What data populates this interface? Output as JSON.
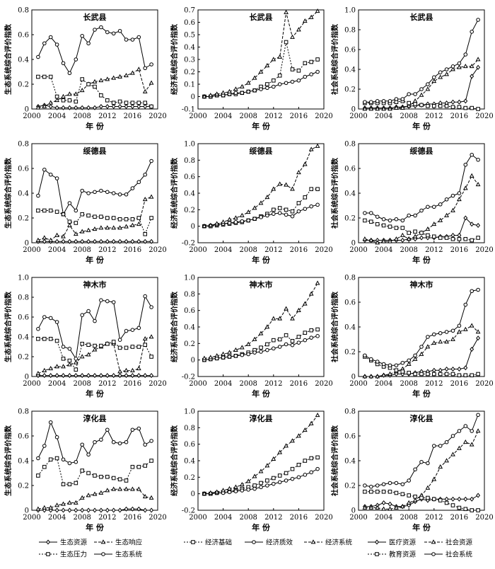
{
  "x_label": "年 份",
  "x_ticks": [
    2000,
    2004,
    2008,
    2012,
    2016,
    2020
  ],
  "years": [
    2001,
    2002,
    2003,
    2004,
    2005,
    2006,
    2007,
    2008,
    2009,
    2010,
    2011,
    2012,
    2013,
    2014,
    2015,
    2016,
    2017,
    2018,
    2019
  ],
  "legends": {
    "eco": [
      {
        "name": "生态资源",
        "key": "resource",
        "marker": "diamond",
        "dash": "solid"
      },
      {
        "name": "生态响应",
        "key": "response",
        "marker": "triangle",
        "dash": "dash"
      },
      {
        "name": "生态压力",
        "key": "pressure",
        "marker": "square",
        "dash": "dot"
      },
      {
        "name": "生态系统",
        "key": "system",
        "marker": "circle",
        "dash": "solid"
      }
    ],
    "econ": [
      {
        "name": "经济基础",
        "key": "base",
        "marker": "square",
        "dash": "dot"
      },
      {
        "name": "经济质效",
        "key": "quality",
        "marker": "circle",
        "dash": "solid"
      },
      {
        "name": "经济系统",
        "key": "system",
        "marker": "triangle",
        "dash": "dash"
      }
    ],
    "soc": [
      {
        "name": "医疗资源",
        "key": "medical",
        "marker": "diamond",
        "dash": "solid"
      },
      {
        "name": "社会资源",
        "key": "resource",
        "marker": "triangle",
        "dash": "dash"
      },
      {
        "name": "教育资源",
        "key": "education",
        "marker": "square",
        "dash": "dot"
      },
      {
        "name": "社会系统",
        "key": "system",
        "marker": "circle",
        "dash": "solid"
      }
    ]
  },
  "chart_data": [
    {
      "type": "line",
      "group": "eco",
      "title": "长武县",
      "ylabel": "生态系统综合评价指数",
      "ylim": [
        0,
        0.8
      ],
      "yticks": [
        "0",
        "0.2",
        "0.4",
        "0.6",
        "0.8"
      ],
      "series": {
        "resource": [
          0.02,
          0.03,
          0.02,
          0.01,
          0.01,
          0.01,
          0.01,
          0.01,
          0.01,
          0.01,
          0.02,
          0.02,
          0.02,
          0.02,
          0.02,
          0.02,
          0.02,
          0.02,
          0.02
        ],
        "response": [
          0.01,
          0.02,
          0.05,
          0.07,
          0.1,
          0.12,
          0.12,
          0.15,
          0.2,
          0.22,
          0.23,
          0.24,
          0.25,
          0.26,
          0.27,
          0.29,
          0.32,
          0.14,
          0.21
        ],
        "pressure": [
          0.26,
          0.26,
          0.26,
          0.1,
          0.07,
          0.07,
          0.06,
          0.24,
          0.2,
          0.18,
          0.11,
          0.07,
          0.05,
          0.06,
          0.05,
          0.05,
          0.05,
          0.05,
          0.02
        ],
        "system": [
          0.42,
          0.53,
          0.58,
          0.52,
          0.37,
          0.29,
          0.4,
          0.59,
          0.53,
          0.64,
          0.66,
          0.62,
          0.61,
          0.63,
          0.56,
          0.56,
          0.58,
          0.33,
          0.36
        ]
      }
    },
    {
      "type": "line",
      "group": "econ",
      "title": "长武县",
      "ylabel": "经济系统综合评价指数",
      "ylim": [
        -0.1,
        0.7
      ],
      "yticks": [
        "-0.1",
        "0",
        "0.1",
        "0.2",
        "0.3",
        "0.4",
        "0.5",
        "0.6",
        "0.7"
      ],
      "series": {
        "base": [
          0.0,
          0.0,
          0.01,
          0.01,
          0.02,
          0.02,
          0.03,
          0.04,
          0.05,
          0.08,
          0.1,
          0.13,
          0.17,
          0.44,
          0.22,
          0.21,
          0.27,
          0.28,
          0.3
        ],
        "quality": [
          0.0,
          0.0,
          0.01,
          0.01,
          0.02,
          0.03,
          0.03,
          0.04,
          0.05,
          0.06,
          0.07,
          0.08,
          0.1,
          0.11,
          0.12,
          0.13,
          0.16,
          0.18,
          0.2
        ],
        "system": [
          0.0,
          0.01,
          0.02,
          0.03,
          0.04,
          0.06,
          0.08,
          0.11,
          0.15,
          0.2,
          0.25,
          0.3,
          0.32,
          0.68,
          0.48,
          0.54,
          0.61,
          0.64,
          0.69
        ]
      }
    },
    {
      "type": "line",
      "group": "soc",
      "title": "长武县",
      "ylabel": "社会系统综合评价指数",
      "ylim": [
        0,
        1.0
      ],
      "yticks": [
        "0",
        "0.2",
        "0.4",
        "0.6",
        "0.8",
        "1.0"
      ],
      "series": {
        "medical": [
          0.01,
          0.01,
          0.01,
          0.01,
          0.01,
          0.02,
          0.02,
          0.03,
          0.03,
          0.04,
          0.05,
          0.05,
          0.06,
          0.06,
          0.07,
          0.07,
          0.08,
          0.33,
          0.42
        ],
        "resource": [
          0.0,
          0.0,
          0.0,
          0.0,
          0.0,
          0.01,
          0.01,
          0.03,
          0.08,
          0.14,
          0.2,
          0.28,
          0.32,
          0.35,
          0.4,
          0.42,
          0.43,
          0.43,
          0.5
        ],
        "education": [
          0.06,
          0.06,
          0.06,
          0.06,
          0.06,
          0.07,
          0.08,
          0.06,
          0.05,
          0.04,
          0.03,
          0.03,
          0.03,
          0.03,
          0.02,
          0.02,
          0.01,
          0.01,
          0.0
        ],
        "system": [
          0.07,
          0.07,
          0.08,
          0.08,
          0.08,
          0.1,
          0.1,
          0.15,
          0.15,
          0.2,
          0.25,
          0.32,
          0.37,
          0.4,
          0.43,
          0.46,
          0.55,
          0.78,
          0.9
        ]
      }
    },
    {
      "type": "line",
      "group": "eco",
      "title": "绥德县",
      "ylabel": "生态系统综合评价指数",
      "ylim": [
        0,
        0.8
      ],
      "yticks": [
        "0",
        "0.2",
        "0.4",
        "0.6",
        "0.8"
      ],
      "series": {
        "resource": [
          0.01,
          0.01,
          0.01,
          0.01,
          0.01,
          0.01,
          0.01,
          0.01,
          0.01,
          0.01,
          0.01,
          0.01,
          0.01,
          0.01,
          0.01,
          0.01,
          0.01,
          0.01,
          0.01
        ],
        "response": [
          0.02,
          0.04,
          0.02,
          0.06,
          0.05,
          0.14,
          0.07,
          0.09,
          0.1,
          0.11,
          0.12,
          0.12,
          0.12,
          0.12,
          0.13,
          0.14,
          0.15,
          0.35,
          0.37
        ],
        "pressure": [
          0.26,
          0.26,
          0.26,
          0.25,
          0.23,
          0.17,
          0.16,
          0.23,
          0.22,
          0.21,
          0.21,
          0.2,
          0.2,
          0.19,
          0.19,
          0.19,
          0.2,
          0.07,
          0.2
        ],
        "system": [
          0.38,
          0.59,
          0.55,
          0.52,
          0.23,
          0.32,
          0.26,
          0.42,
          0.4,
          0.41,
          0.42,
          0.41,
          0.4,
          0.39,
          0.39,
          0.44,
          0.49,
          0.55,
          0.66
        ]
      }
    },
    {
      "type": "line",
      "group": "econ",
      "title": "绥德县",
      "ylabel": "经济系统综合评价指数",
      "ylim": [
        -0.2,
        1.0
      ],
      "yticks": [
        "-0.2",
        "0",
        "0.2",
        "0.4",
        "0.6",
        "0.8",
        "1.0"
      ],
      "series": {
        "base": [
          0.0,
          0.0,
          0.01,
          0.02,
          0.03,
          0.04,
          0.05,
          0.07,
          0.09,
          0.12,
          0.15,
          0.2,
          0.22,
          0.2,
          0.18,
          0.28,
          0.35,
          0.45,
          0.45
        ],
        "quality": [
          0.0,
          0.01,
          0.02,
          0.03,
          0.04,
          0.05,
          0.06,
          0.07,
          0.09,
          0.11,
          0.13,
          0.15,
          0.16,
          0.14,
          0.12,
          0.18,
          0.21,
          0.24,
          0.26
        ],
        "system": [
          0.0,
          0.01,
          0.03,
          0.05,
          0.08,
          0.1,
          0.13,
          0.17,
          0.22,
          0.28,
          0.35,
          0.45,
          0.51,
          0.5,
          0.45,
          0.65,
          0.75,
          0.93,
          0.97
        ]
      }
    },
    {
      "type": "line",
      "group": "soc",
      "title": "绥德县",
      "ylabel": "社会系统综合评价指数",
      "ylim": [
        0,
        0.8
      ],
      "yticks": [
        "0",
        "0.2",
        "0.4",
        "0.6",
        "0.8"
      ],
      "series": {
        "medical": [
          0.02,
          0.02,
          0.02,
          0.02,
          0.02,
          0.02,
          0.02,
          0.03,
          0.03,
          0.04,
          0.04,
          0.04,
          0.05,
          0.05,
          0.06,
          0.06,
          0.2,
          0.15,
          0.14
        ],
        "resource": [
          0.03,
          0.02,
          0.0,
          0.01,
          0.01,
          0.03,
          0.06,
          0.03,
          0.05,
          0.08,
          0.11,
          0.15,
          0.18,
          0.22,
          0.26,
          0.35,
          0.44,
          0.54,
          0.47
        ],
        "education": [
          0.18,
          0.17,
          0.15,
          0.14,
          0.13,
          0.12,
          0.12,
          0.08,
          0.09,
          0.08,
          0.06,
          0.05,
          0.04,
          0.04,
          0.03,
          0.03,
          0.03,
          0.02,
          0.04
        ],
        "system": [
          0.24,
          0.24,
          0.21,
          0.19,
          0.18,
          0.19,
          0.18,
          0.22,
          0.22,
          0.26,
          0.29,
          0.29,
          0.31,
          0.35,
          0.38,
          0.4,
          0.63,
          0.71,
          0.67
        ]
      }
    },
    {
      "type": "line",
      "group": "eco",
      "title": "神木市",
      "ylabel": "生态系统综合评价指数",
      "ylim": [
        0,
        1.0
      ],
      "yticks": [
        "0",
        "0.2",
        "0.4",
        "0.6",
        "0.8",
        "1.0"
      ],
      "series": {
        "resource": [
          0.01,
          0.01,
          0.01,
          0.01,
          0.01,
          0.01,
          0.01,
          0.01,
          0.01,
          0.01,
          0.01,
          0.01,
          0.01,
          0.01,
          0.01,
          0.01,
          0.01,
          0.01,
          0.01
        ],
        "response": [
          0.03,
          0.06,
          0.08,
          0.1,
          0.1,
          0.12,
          0.14,
          0.2,
          0.22,
          0.27,
          0.3,
          0.33,
          0.33,
          0.05,
          0.06,
          0.06,
          0.08,
          0.38,
          0.4
        ],
        "pressure": [
          0.38,
          0.38,
          0.38,
          0.36,
          0.18,
          0.16,
          0.07,
          0.33,
          0.32,
          0.31,
          0.31,
          0.33,
          0.35,
          0.29,
          0.29,
          0.3,
          0.3,
          0.32,
          0.2
        ],
        "system": [
          0.48,
          0.6,
          0.59,
          0.55,
          0.3,
          0.28,
          0.18,
          0.62,
          0.66,
          0.56,
          0.77,
          0.76,
          0.75,
          0.37,
          0.46,
          0.47,
          0.49,
          0.81,
          0.7
        ]
      }
    },
    {
      "type": "line",
      "group": "econ",
      "title": "神木市",
      "ylabel": "经济系统综合评价指数",
      "ylim": [
        -0.2,
        1.0
      ],
      "yticks": [
        "-0.2",
        "0",
        "0.2",
        "0.4",
        "0.6",
        "0.8",
        "1.0"
      ],
      "series": {
        "base": [
          0.0,
          0.01,
          0.02,
          0.03,
          0.04,
          0.05,
          0.07,
          0.09,
          0.12,
          0.15,
          0.19,
          0.24,
          0.25,
          0.3,
          0.23,
          0.28,
          0.33,
          0.36,
          0.37
        ],
        "quality": [
          0.0,
          0.01,
          0.02,
          0.03,
          0.04,
          0.05,
          0.06,
          0.07,
          0.09,
          0.1,
          0.12,
          0.14,
          0.16,
          0.19,
          0.18,
          0.21,
          0.24,
          0.27,
          0.29
        ],
        "system": [
          0.02,
          0.03,
          0.05,
          0.07,
          0.09,
          0.12,
          0.15,
          0.19,
          0.25,
          0.32,
          0.4,
          0.5,
          0.5,
          0.62,
          0.5,
          0.6,
          0.68,
          0.8,
          0.93
        ]
      }
    },
    {
      "type": "line",
      "group": "soc",
      "title": "神木市",
      "ylabel": "社会系统综合评价指数",
      "ylim": [
        0,
        0.8
      ],
      "yticks": [
        "0",
        "0.2",
        "0.4",
        "0.6",
        "0.8"
      ],
      "series": {
        "medical": [
          0.0,
          0.0,
          0.0,
          0.01,
          0.01,
          0.02,
          0.02,
          0.02,
          0.03,
          0.04,
          0.04,
          0.05,
          0.05,
          0.06,
          0.06,
          0.06,
          0.07,
          0.22,
          0.31
        ],
        "resource": [
          0.0,
          0.0,
          0.0,
          0.01,
          0.02,
          0.04,
          0.06,
          0.1,
          0.14,
          0.18,
          0.24,
          0.27,
          0.28,
          0.28,
          0.3,
          0.36,
          0.38,
          0.41,
          0.36
        ],
        "education": [
          0.16,
          0.13,
          0.1,
          0.08,
          0.07,
          0.05,
          0.04,
          0.03,
          0.02,
          0.02,
          0.02,
          0.02,
          0.02,
          0.02,
          0.02,
          0.01,
          0.01,
          0.01,
          0.02
        ],
        "system": [
          0.17,
          0.14,
          0.12,
          0.1,
          0.09,
          0.09,
          0.11,
          0.13,
          0.17,
          0.24,
          0.32,
          0.34,
          0.35,
          0.36,
          0.37,
          0.41,
          0.58,
          0.69,
          0.7
        ]
      }
    },
    {
      "type": "line",
      "group": "eco",
      "title": "淳化县",
      "ylabel": "生态系统综合评价指数",
      "ylim": [
        0,
        0.8
      ],
      "yticks": [
        "0",
        "0.2",
        "0.4",
        "0.6",
        "0.8"
      ],
      "series": {
        "resource": [
          0.0,
          0.0,
          0.0,
          0.0,
          0.0,
          0.0,
          0.0,
          0.0,
          0.0,
          0.0,
          0.0,
          0.0,
          0.0,
          0.0,
          0.01,
          0.01,
          0.01,
          0.0,
          0.0
        ],
        "response": [
          0.01,
          0.02,
          0.02,
          0.04,
          0.05,
          0.06,
          0.06,
          0.1,
          0.12,
          0.13,
          0.14,
          0.16,
          0.17,
          0.17,
          0.17,
          0.17,
          0.17,
          0.11,
          0.1
        ],
        "pressure": [
          0.28,
          0.35,
          0.41,
          0.42,
          0.21,
          0.21,
          0.22,
          0.32,
          0.3,
          0.28,
          0.27,
          0.27,
          0.26,
          0.25,
          0.24,
          0.35,
          0.35,
          0.36,
          0.4
        ],
        "system": [
          0.42,
          0.52,
          0.71,
          0.59,
          0.41,
          0.38,
          0.39,
          0.53,
          0.45,
          0.55,
          0.57,
          0.65,
          0.55,
          0.54,
          0.55,
          0.65,
          0.66,
          0.53,
          0.56
        ]
      }
    },
    {
      "type": "line",
      "group": "econ",
      "title": "淳化县",
      "ylabel": "经济系统综合评价指数",
      "ylim": [
        -0.2,
        1.0
      ],
      "yticks": [
        "-0.2",
        "0",
        "0.2",
        "0.4",
        "0.6",
        "0.8",
        "1.0"
      ],
      "series": {
        "base": [
          0.0,
          0.0,
          0.01,
          0.02,
          0.03,
          0.04,
          0.06,
          0.08,
          0.1,
          0.13,
          0.16,
          0.19,
          0.22,
          0.25,
          0.3,
          0.35,
          0.4,
          0.43,
          0.44
        ],
        "quality": [
          0.0,
          0.0,
          0.01,
          0.01,
          0.02,
          0.03,
          0.04,
          0.05,
          0.06,
          0.08,
          0.1,
          0.12,
          0.14,
          0.16,
          0.18,
          0.2,
          0.23,
          0.26,
          0.3
        ],
        "system": [
          0.0,
          0.01,
          0.02,
          0.04,
          0.06,
          0.08,
          0.11,
          0.15,
          0.21,
          0.27,
          0.34,
          0.42,
          0.5,
          0.58,
          0.64,
          0.7,
          0.77,
          0.85,
          0.95
        ]
      }
    },
    {
      "type": "line",
      "group": "soc",
      "title": "淳化县",
      "ylabel": "社会系统综合评价指数",
      "ylim": [
        0,
        0.8
      ],
      "yticks": [
        "0",
        "0.2",
        "0.4",
        "0.6",
        "0.8"
      ],
      "series": {
        "medical": [
          0.03,
          0.03,
          0.04,
          0.06,
          0.05,
          0.03,
          0.03,
          0.04,
          0.07,
          0.09,
          0.08,
          0.09,
          0.09,
          0.09,
          0.09,
          0.09,
          0.09,
          0.09,
          0.12
        ],
        "resource": [
          0.02,
          0.02,
          0.02,
          0.01,
          0.01,
          0.02,
          0.03,
          0.06,
          0.08,
          0.12,
          0.18,
          0.25,
          0.35,
          0.4,
          0.45,
          0.5,
          0.55,
          0.53,
          0.64
        ],
        "education": [
          0.15,
          0.15,
          0.15,
          0.15,
          0.15,
          0.14,
          0.13,
          0.12,
          0.11,
          0.1,
          0.1,
          0.09,
          0.08,
          0.06,
          0.04,
          0.02,
          0.01,
          0.0,
          0.0
        ],
        "system": [
          0.2,
          0.19,
          0.2,
          0.21,
          0.22,
          0.22,
          0.21,
          0.24,
          0.33,
          0.39,
          0.38,
          0.52,
          0.52,
          0.55,
          0.6,
          0.64,
          0.68,
          0.64,
          0.77
        ]
      }
    }
  ]
}
